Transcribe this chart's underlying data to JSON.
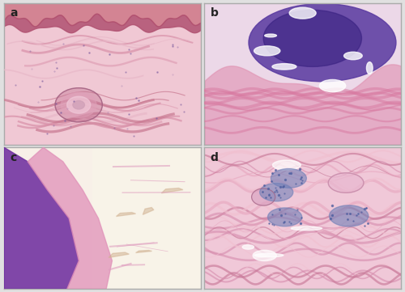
{
  "figure_size": [
    5.0,
    3.61
  ],
  "dpi": 100,
  "labels": [
    "a",
    "b",
    "c",
    "d"
  ],
  "background_color": "#e0e0e0",
  "label_color": "#222222",
  "label_fontsize": 10,
  "outer_border_color": "#aaaaaa",
  "panel_a": {
    "bg": "#f0c8d4",
    "epidermis_top": "#c86878",
    "epidermis_mid": "#b05070",
    "fiber_colors": [
      "#e0a0b5",
      "#d890a8",
      "#c87890",
      "#e8b8c8"
    ],
    "follicle_colors": [
      "#c07090",
      "#e0a0b8",
      "#f0c8d8",
      "#d0a0b8"
    ],
    "follicle_border": "#a06080",
    "dot_color": "#8060a0"
  },
  "panel_b": {
    "bg": "#ecd8e8",
    "dark_mass": "#5838a0",
    "dark_mass2": "#382080",
    "pink_tissue": "#e090b0",
    "fibrous": "#d878a0"
  },
  "panel_c": {
    "bg": "#f8f0e8",
    "dark_wall": "#7030a0",
    "pink_layer": "#e090b8",
    "light_cavity": "#f8f4e8",
    "debris": "#d0b090",
    "fibrous": "#e0a0c0"
  },
  "panel_d": {
    "bg": "#f0c8d8",
    "fiber_colors": [
      "#e8a8c0",
      "#d890b0",
      "#f0c0d0",
      "#c87898"
    ],
    "cluster_color": "#7080b8",
    "dot_color": "#5060a0",
    "gland_fill": "#e8b8d0",
    "gland_border": "#c080a0",
    "follicle_fill": "#d8a0c0",
    "follicle_border": "#a06080"
  }
}
